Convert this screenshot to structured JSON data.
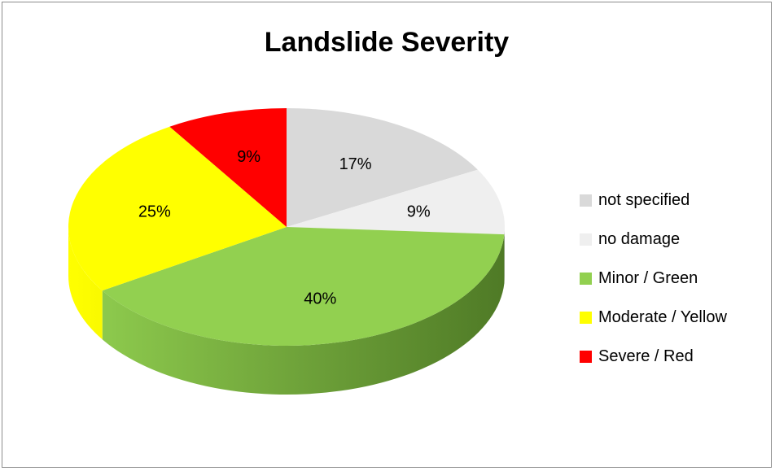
{
  "chart_data": {
    "type": "pie",
    "title": "Landslide Severity",
    "categories": [
      "not specified",
      "no damage",
      "Minor / Green",
      "Moderate / Yellow",
      "Severe / Red"
    ],
    "values": [
      17,
      9,
      40,
      25,
      9
    ],
    "data_labels": [
      "17%",
      "9%",
      "40%",
      "25%",
      "9%"
    ],
    "colors": [
      "#d9d9d9",
      "#efefef",
      "#92d050",
      "#ffff00",
      "#ff0000"
    ],
    "side_colors": [
      "#a6a6a6",
      "#bfbfbf",
      "#4f7a26",
      "#b8b800",
      "#c00000"
    ],
    "legend": "right",
    "style": "3d"
  }
}
